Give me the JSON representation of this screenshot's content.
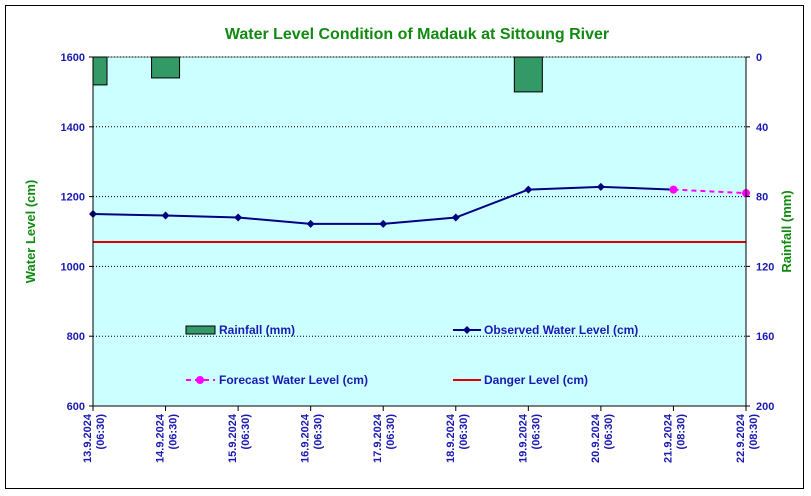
{
  "chart_data": {
    "type": "line",
    "title": "Water Level Condition of Madauk at Sittoung River",
    "ylabel": "Water Level (cm)",
    "y2label": "Rainfall (mm)",
    "ylim": [
      600,
      1600
    ],
    "yticks": [
      "600",
      "800",
      "1000",
      "1200",
      "1400",
      "1600"
    ],
    "y2lim": [
      0,
      200
    ],
    "y2ticks": [
      "0",
      "40",
      "80",
      "120",
      "160",
      "200"
    ],
    "y2_reversed": true,
    "grid": true,
    "categories": [
      [
        "13.9.2024",
        "(06:30)"
      ],
      [
        "14.9.2024",
        "(06:30)"
      ],
      [
        "15.9.2024",
        "(06:30)"
      ],
      [
        "16.9.2024",
        "(06:30)"
      ],
      [
        "17.9.2024",
        "(06:30)"
      ],
      [
        "18.9.2024",
        "(06:30)"
      ],
      [
        "19.9.2024",
        "(06:30)"
      ],
      [
        "20.9.2024",
        "(06:30)"
      ],
      [
        "21.9.2024",
        "(08:30)"
      ],
      [
        "22.9.2024",
        "(08:30)"
      ]
    ],
    "series": [
      {
        "name": "Rainfall (mm)",
        "type": "bar",
        "axis": "right",
        "color": "#339966",
        "values": [
          16,
          12,
          0,
          0,
          0,
          0,
          20,
          0,
          0,
          0
        ]
      },
      {
        "name": "Observed Water Level (cm)",
        "type": "line",
        "axis": "left",
        "color": "#000080",
        "marker": "diamond",
        "values": [
          1150,
          1146,
          1140,
          1122,
          1122,
          1140,
          1220,
          1228,
          1220,
          null
        ]
      },
      {
        "name": "Forecast Water Level (cm)",
        "type": "line",
        "axis": "left",
        "color": "#ff00ff",
        "dashed": true,
        "marker": "circle",
        "values": [
          null,
          null,
          null,
          null,
          null,
          null,
          null,
          null,
          1220,
          1210
        ]
      },
      {
        "name": "Danger Level (cm)",
        "type": "line",
        "axis": "left",
        "color": "#e00000",
        "value": 1070
      }
    ],
    "plot_background": "#ccffff",
    "legend_position": "inside-bottom"
  }
}
